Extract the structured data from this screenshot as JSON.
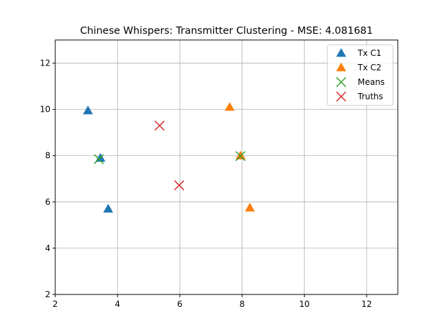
{
  "chart_data": {
    "type": "scatter",
    "title": "Chinese Whispers: Transmitter Clustering - MSE: 4.081681",
    "xlabel": "",
    "ylabel": "",
    "xlim": [
      2,
      13
    ],
    "ylim": [
      2,
      13
    ],
    "xticks": [
      2,
      4,
      6,
      8,
      10,
      12
    ],
    "yticks": [
      2,
      4,
      6,
      8,
      10,
      12
    ],
    "grid": true,
    "legend_position": "top-right",
    "series": [
      {
        "name": "Tx C1",
        "marker": "triangle",
        "color": "#1f77b4",
        "points": [
          [
            3.05,
            9.95
          ],
          [
            3.45,
            7.9
          ],
          [
            3.7,
            5.7
          ]
        ]
      },
      {
        "name": "Tx C2",
        "marker": "triangle",
        "color": "#ff7f0e",
        "points": [
          [
            7.6,
            10.1
          ],
          [
            7.95,
            8.0
          ],
          [
            8.25,
            5.75
          ]
        ]
      },
      {
        "name": "Means",
        "marker": "x",
        "color": "#2ca02c",
        "points": [
          [
            3.4,
            7.85
          ],
          [
            7.95,
            7.98
          ]
        ]
      },
      {
        "name": "Truths",
        "marker": "x",
        "color": "#d62728",
        "points": [
          [
            5.35,
            9.3
          ],
          [
            5.98,
            6.72
          ]
        ]
      }
    ]
  }
}
